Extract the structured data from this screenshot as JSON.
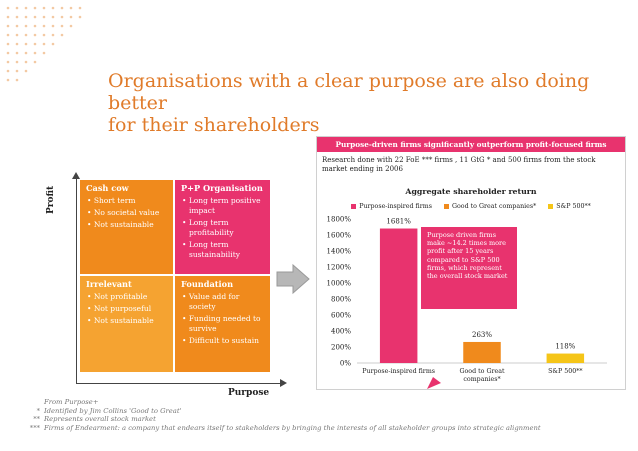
{
  "title": {
    "line1": "Organisations with a clear purpose are also doing better",
    "line2": "for their shareholders"
  },
  "matrix": {
    "y_axis_label": "Profit",
    "x_axis_label": "Purpose",
    "quadrants": {
      "cash_cow": {
        "title": "Cash cow",
        "bullets": [
          "Short term",
          "No societal value",
          "Not sustainable"
        ]
      },
      "pp_organisation": {
        "title": "P+P Organisation",
        "bullets": [
          "Long term positive impact",
          "Long term profitability",
          "Long term sustainability"
        ]
      },
      "irrelevant": {
        "title": "Irrelevant",
        "bullets": [
          "Not profitable",
          "Not purposeful",
          "Not sustainable"
        ]
      },
      "foundation": {
        "title": "Foundation",
        "bullets": [
          "Value add for society",
          "Funding needed to survive",
          "Difficult to sustain"
        ]
      }
    },
    "colors": {
      "cash_cow": "#f08a1c",
      "pp_organisation": "#e8336e",
      "irrelevant": "#f5a331",
      "foundation": "#f08a1c"
    }
  },
  "panel": {
    "header": "Purpose-driven firms significantly outperform profit-focused firms",
    "note": "Research done with 22 FoE *** firms , 11 GtG * and 500 firms from the stock market ending in 2006",
    "callout": "Purpose driven firms make ~14.2 times more profit after 15 years compared to S&P 500 firms, which represent the overall stock market"
  },
  "chart_data": {
    "type": "bar",
    "title": "Aggregate shareholder return",
    "categories": [
      "Purpose-inspired firms",
      "Good to Great companies*",
      "S&P 500**"
    ],
    "values": [
      1681,
      263,
      118
    ],
    "data_labels": [
      "1681%",
      "263%",
      "118%"
    ],
    "colors": [
      "#e8336e",
      "#f08a1c",
      "#f5c518"
    ],
    "legend": [
      "Purpose-inspired firms",
      "Good to Great companies*",
      "S&P 500**"
    ],
    "legend_position": "top",
    "yticks": [
      "0%",
      "200%",
      "400%",
      "600%",
      "800%",
      "1000%",
      "1200%",
      "1400%",
      "1600%",
      "1800%"
    ],
    "ylim": [
      0,
      1800
    ],
    "grid": false
  },
  "footnotes": [
    {
      "mark": "",
      "text": "From Purpose+"
    },
    {
      "mark": "*",
      "text": "Identified by Jim Collins 'Good to Great'"
    },
    {
      "mark": "**",
      "text": "Represents overall stock market"
    },
    {
      "mark": "***",
      "text": "Firms of Endearment: a company that endears itself to stakeholders by bringing the interests of all stakeholder groups into strategic alignment"
    }
  ]
}
